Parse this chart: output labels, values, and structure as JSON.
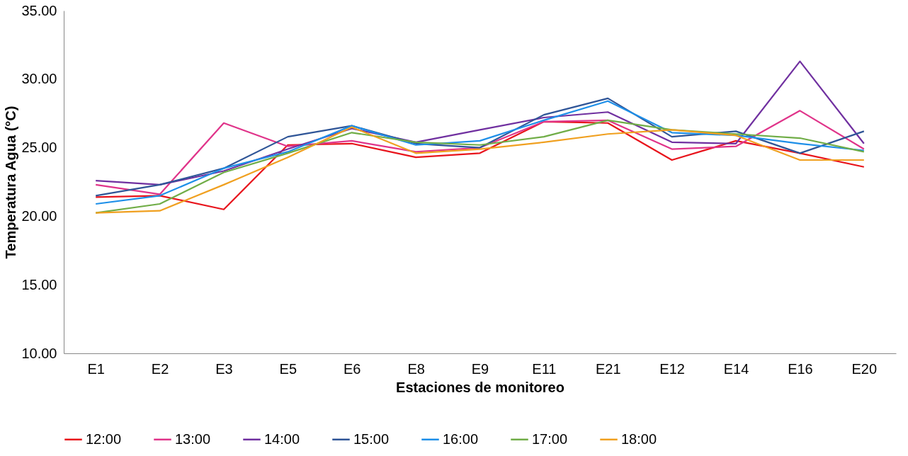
{
  "chart_data": {
    "type": "line",
    "xlabel": "Estaciones de monitoreo",
    "ylabel": "Temperatura Agua (°C)",
    "categories": [
      "E1",
      "E2",
      "E3",
      "E5",
      "E6",
      "E8",
      "E9",
      "E11",
      "E21",
      "E12",
      "E14",
      "E16",
      "E20"
    ],
    "ylim": [
      10,
      35
    ],
    "yticks": [
      {
        "value": 10,
        "label": "10.00"
      },
      {
        "value": 15,
        "label": "15.00"
      },
      {
        "value": 20,
        "label": "20.00"
      },
      {
        "value": 25,
        "label": "25.00"
      },
      {
        "value": 30,
        "label": "30.00"
      },
      {
        "value": 35,
        "label": "35.00"
      }
    ],
    "grid": false,
    "legend": "bottom",
    "marker": "none",
    "line_style": "solid",
    "series": [
      {
        "name": "12:00",
        "color": "#e8141c",
        "values": [
          21.4,
          21.5,
          20.5,
          25.2,
          25.3,
          24.3,
          24.6,
          26.9,
          26.8,
          24.1,
          25.5,
          24.6,
          23.6
        ]
      },
      {
        "name": "13:00",
        "color": "#e0348a",
        "values": [
          22.3,
          21.6,
          26.8,
          25.1,
          25.5,
          24.7,
          25.0,
          26.9,
          27.0,
          24.9,
          25.1,
          27.7,
          24.9
        ]
      },
      {
        "name": "14:00",
        "color": "#7030a0",
        "values": [
          22.6,
          22.3,
          23.3,
          24.9,
          26.4,
          25.4,
          26.3,
          27.2,
          27.6,
          25.4,
          25.3,
          31.3,
          25.3
        ]
      },
      {
        "name": "15:00",
        "color": "#2f5597",
        "values": [
          21.5,
          22.3,
          23.5,
          25.8,
          26.6,
          25.3,
          25.0,
          27.4,
          28.6,
          25.8,
          26.2,
          24.6,
          26.2
        ]
      },
      {
        "name": "16:00",
        "color": "#1e8fe8",
        "values": [
          20.9,
          21.5,
          23.5,
          24.7,
          26.6,
          25.2,
          25.5,
          27.0,
          28.4,
          26.1,
          25.9,
          25.3,
          24.8
        ]
      },
      {
        "name": "17:00",
        "color": "#70ad47",
        "values": [
          20.25,
          20.9,
          23.2,
          24.6,
          26.1,
          25.4,
          25.2,
          25.8,
          27.0,
          26.3,
          26.0,
          25.7,
          24.7
        ]
      },
      {
        "name": "18:00",
        "color": "#f0a020",
        "values": [
          20.25,
          20.4,
          22.3,
          24.3,
          26.5,
          24.6,
          24.9,
          25.4,
          26.0,
          26.3,
          25.9,
          24.1,
          24.1
        ]
      }
    ]
  }
}
